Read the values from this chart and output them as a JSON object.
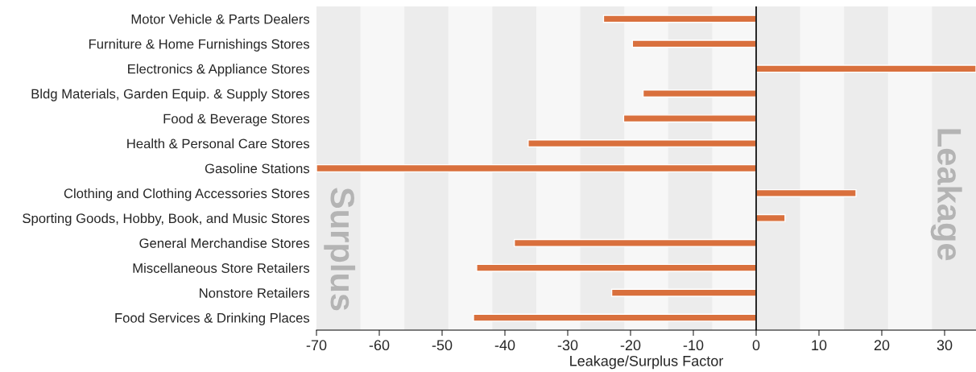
{
  "chart_data": {
    "type": "bar",
    "orientation": "horizontal",
    "xlabel": "Leakage/Surplus Factor",
    "categories": [
      "Motor Vehicle & Parts Dealers",
      "Furniture & Home Furnishings Stores",
      "Electronics & Appliance Stores",
      "Bldg Materials, Garden Equip. & Supply Stores",
      "Food & Beverage Stores",
      "Health & Personal Care Stores",
      "Gasoline Stations",
      "Clothing and Clothing Accessories Stores",
      "Sporting Goods, Hobby, Book, and Music Stores",
      "General Merchandise Stores",
      "Miscellaneous Store Retailers",
      "Nonstore Retailers",
      "Food Services & Drinking Places"
    ],
    "values": [
      -24.3,
      -19.7,
      35,
      -18.0,
      -21.1,
      -36.3,
      -70,
      15.9,
      4.6,
      -38.5,
      -44.5,
      -23.0,
      -45.0
    ],
    "color": "#d9703d",
    "xlim": [
      -70,
      35
    ],
    "xticks": [
      -70,
      -60,
      -50,
      -40,
      -30,
      -20,
      -10,
      0,
      10,
      20,
      30
    ],
    "ref_lines": [
      {
        "axis": "x",
        "value": 0,
        "color": "#000000"
      }
    ],
    "bands": [
      {
        "axis": "x",
        "from": -70,
        "to": -63,
        "color": "#ececec"
      },
      {
        "axis": "x",
        "from": -56,
        "to": -49,
        "color": "#ececec"
      },
      {
        "axis": "x",
        "from": -42,
        "to": -35,
        "color": "#ececec"
      },
      {
        "axis": "x",
        "from": -28,
        "to": -21,
        "color": "#ececec"
      },
      {
        "axis": "x",
        "from": -14,
        "to": -7,
        "color": "#ececec"
      },
      {
        "axis": "x",
        "from": 0,
        "to": 7,
        "color": "#ececec"
      },
      {
        "axis": "x",
        "from": 14,
        "to": 21,
        "color": "#ececec"
      },
      {
        "axis": "x",
        "from": 28,
        "to": 35,
        "color": "#ececec"
      }
    ],
    "annotations": [
      "Surplus",
      "Leakage"
    ],
    "grid": false,
    "legend": false
  }
}
